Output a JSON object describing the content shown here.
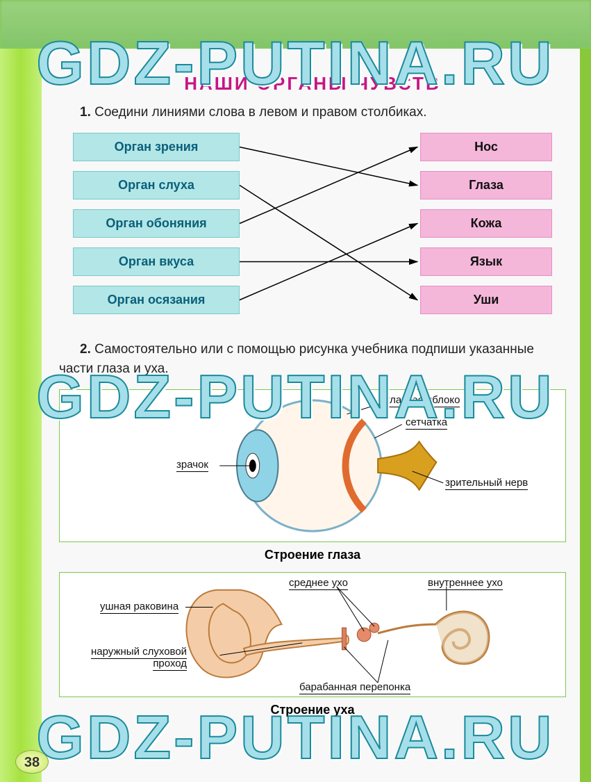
{
  "watermark": "GDZ-PUTINA.RU",
  "title": "НАШИ ОРГАНЫ ЧУВСТВ",
  "task1": {
    "num": "1.",
    "prompt": "Соедини линиями слова в левом и правом столбиках.",
    "left_items_color": "#b3e6e6",
    "right_items_color": "#f4b6d9",
    "left_items": [
      "Орган зрения",
      "Орган слуха",
      "Орган обоняния",
      "Орган вкуса",
      "Орган осязания"
    ],
    "right_items": [
      "Нос",
      "Глаза",
      "Кожа",
      "Язык",
      "Уши"
    ],
    "connections": [
      {
        "from": 0,
        "to": 1
      },
      {
        "from": 1,
        "to": 4
      },
      {
        "from": 2,
        "to": 0
      },
      {
        "from": 3,
        "to": 3
      },
      {
        "from": 4,
        "to": 2
      }
    ],
    "line_color": "#000000",
    "arrow_size": 8
  },
  "task2": {
    "num": "2.",
    "prompt": "Самостоятельно или с помощью рисунка учебника подпиши указанные части глаза и уха."
  },
  "eye": {
    "caption": "Строение глаза",
    "labels": {
      "pupil": "зрачок",
      "eyeball": "глазное яблоко",
      "retina": "сетчатка",
      "optic_nerve": "зрительный нерв"
    },
    "colors": {
      "iris": "#8fd4e6",
      "sclera": "#fff5ea",
      "retina_band": "#e06b2e",
      "outer": "#7ab0c8",
      "nerve": "#d9a020"
    }
  },
  "ear": {
    "caption": "Строение уха",
    "labels": {
      "pinna": "ушная раковина",
      "canal_l1": "наружный слуховой",
      "canal_l2": "проход",
      "middle": "среднее ухо",
      "inner": "внутреннее ухо",
      "eardrum": "барабанная перепонка"
    },
    "colors": {
      "skin": "#f4cda8",
      "outline": "#bb7a3a",
      "cochlea": "#e6cfa8"
    }
  },
  "page_number": "38"
}
